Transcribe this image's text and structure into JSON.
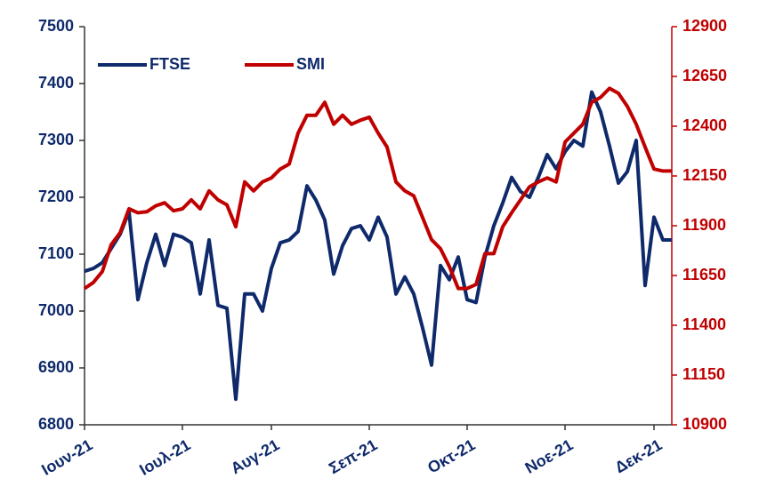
{
  "chart_data": {
    "type": "line",
    "categories": [
      "Ιουν-21",
      null,
      null,
      null,
      null,
      null,
      null,
      null,
      null,
      null,
      null,
      "Ιουλ-21",
      null,
      null,
      null,
      null,
      null,
      null,
      null,
      null,
      null,
      "Αυγ-21",
      null,
      null,
      null,
      null,
      null,
      null,
      null,
      null,
      null,
      null,
      "Σεπ-21",
      null,
      null,
      null,
      null,
      null,
      null,
      null,
      null,
      null,
      null,
      "Οκτ-21",
      null,
      null,
      null,
      null,
      null,
      null,
      null,
      null,
      null,
      null,
      "Νοε-21",
      null,
      null,
      null,
      null,
      null,
      null,
      null,
      null,
      null,
      "Δεκ-21",
      null,
      null
    ],
    "series": [
      {
        "name": "FTSE",
        "color": "#0f2a6b",
        "values": [
          7070,
          7075,
          7085,
          7110,
          7135,
          7175,
          7020,
          7085,
          7135,
          7080,
          7135,
          7130,
          7120,
          7030,
          7125,
          7010,
          7005,
          6845,
          7030,
          7030,
          7000,
          7075,
          7120,
          7125,
          7140,
          7220,
          7195,
          7160,
          7065,
          7115,
          7145,
          7150,
          7125,
          7165,
          7130,
          7030,
          7060,
          7030,
          6970,
          6905,
          7080,
          7055,
          7095,
          7020,
          7015,
          7095,
          7150,
          7190,
          7235,
          7210,
          7200,
          7235,
          7275,
          7250,
          7280,
          7300,
          7290,
          7385,
          7350,
          7290,
          7225,
          7245,
          7300,
          7045,
          7165,
          7125,
          7125
        ]
      },
      {
        "name": "SMI",
        "color": "#c00000",
        "axis": "y2",
        "values": [
          11585,
          11615,
          11670,
          11805,
          11865,
          11985,
          11965,
          11970,
          12000,
          12015,
          11975,
          11985,
          12030,
          11985,
          12075,
          12030,
          12005,
          11895,
          12120,
          12075,
          12120,
          12140,
          12185,
          12210,
          12365,
          12455,
          12455,
          12520,
          12410,
          12455,
          12410,
          12430,
          12445,
          12365,
          12295,
          12120,
          12075,
          12050,
          11940,
          11830,
          11785,
          11695,
          11585,
          11585,
          11605,
          11760,
          11760,
          11895,
          11965,
          12030,
          12095,
          12120,
          12140,
          12120,
          12320,
          12365,
          12410,
          12520,
          12545,
          12590,
          12565,
          12500,
          12410,
          12295,
          12185,
          12175,
          12175
        ]
      }
    ],
    "ylim": [
      6800,
      7500
    ],
    "yticks": [
      6800,
      6900,
      7000,
      7100,
      7200,
      7300,
      7400,
      7500
    ],
    "y2lim": [
      10900,
      12900
    ],
    "y2ticks": [
      10900,
      11150,
      11400,
      11650,
      11900,
      12150,
      12400,
      12650,
      12900
    ],
    "legend": "top-left"
  }
}
